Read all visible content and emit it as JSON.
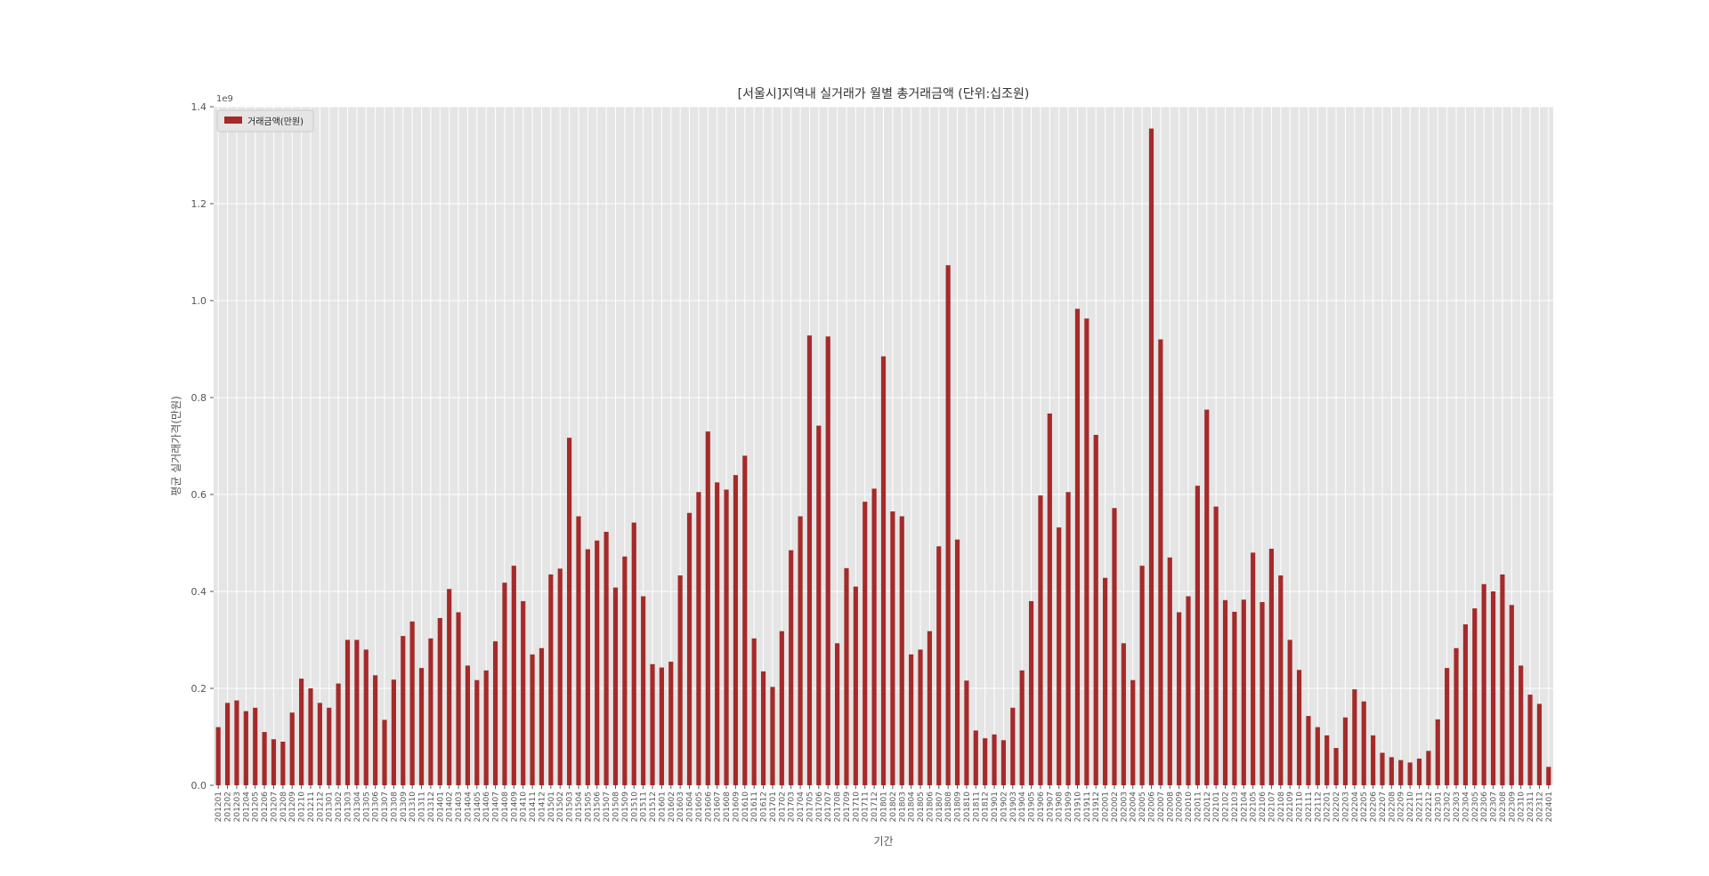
{
  "chart_data": {
    "type": "bar",
    "title": "[서울시]지역내 실거래가 월별 총거래금액 (단위:십조원)",
    "xlabel": "기간",
    "ylabel": "평균 실거래가격(만원)",
    "offset_label": "1e9",
    "legend_label": "거래금액(만원)",
    "legend_position": "top-left",
    "grid": true,
    "colors": {
      "bar": "#A52A2A",
      "plot_bg": "#E5E5E5",
      "grid": "#FFFFFF",
      "text": "#555555",
      "title": "#333333"
    },
    "ylim": [
      0,
      1.4
    ],
    "yticks": [
      "0.0",
      "0.2",
      "0.4",
      "0.6",
      "0.8",
      "1.0",
      "1.2",
      "1.4"
    ],
    "categories": [
      "201201",
      "201202",
      "201203",
      "201204",
      "201205",
      "201206",
      "201207",
      "201208",
      "201209",
      "201210",
      "201211",
      "201212",
      "201301",
      "201302",
      "201303",
      "201304",
      "201305",
      "201306",
      "201307",
      "201308",
      "201309",
      "201310",
      "201311",
      "201312",
      "201401",
      "201402",
      "201403",
      "201404",
      "201405",
      "201406",
      "201407",
      "201408",
      "201409",
      "201410",
      "201411",
      "201412",
      "201501",
      "201502",
      "201503",
      "201504",
      "201505",
      "201506",
      "201507",
      "201508",
      "201509",
      "201510",
      "201511",
      "201512",
      "201601",
      "201602",
      "201603",
      "201604",
      "201605",
      "201606",
      "201607",
      "201608",
      "201609",
      "201610",
      "201611",
      "201612",
      "201701",
      "201702",
      "201703",
      "201704",
      "201705",
      "201706",
      "201707",
      "201708",
      "201709",
      "201710",
      "201711",
      "201712",
      "201801",
      "201802",
      "201803",
      "201804",
      "201805",
      "201806",
      "201807",
      "201808",
      "201809",
      "201810",
      "201811",
      "201812",
      "201901",
      "201902",
      "201903",
      "201904",
      "201905",
      "201906",
      "201907",
      "201908",
      "201909",
      "201910",
      "201911",
      "201912",
      "202001",
      "202002",
      "202003",
      "202004",
      "202005",
      "202006",
      "202007",
      "202008",
      "202009",
      "202010",
      "202011",
      "202012",
      "202101",
      "202102",
      "202103",
      "202104",
      "202105",
      "202106",
      "202107",
      "202108",
      "202109",
      "202110",
      "202111",
      "202112",
      "202201",
      "202202",
      "202203",
      "202204",
      "202205",
      "202206",
      "202207",
      "202208",
      "202209",
      "202210",
      "202211",
      "202212",
      "202301",
      "202302",
      "202303",
      "202304",
      "202305",
      "202306",
      "202307",
      "202308",
      "202309",
      "202310",
      "202311",
      "202312",
      "202401"
    ],
    "values": [
      0.12,
      0.17,
      0.175,
      0.153,
      0.16,
      0.11,
      0.095,
      0.09,
      0.15,
      0.22,
      0.2,
      0.17,
      0.16,
      0.21,
      0.3,
      0.3,
      0.28,
      0.227,
      0.135,
      0.218,
      0.308,
      0.338,
      0.242,
      0.303,
      0.345,
      0.405,
      0.357,
      0.247,
      0.217,
      0.237,
      0.297,
      0.418,
      0.453,
      0.38,
      0.27,
      0.283,
      0.435,
      0.447,
      0.717,
      0.555,
      0.487,
      0.505,
      0.523,
      0.408,
      0.472,
      0.542,
      0.39,
      0.25,
      0.243,
      0.255,
      0.433,
      0.562,
      0.605,
      0.73,
      0.625,
      0.61,
      0.64,
      0.68,
      0.303,
      0.235,
      0.203,
      0.318,
      0.485,
      0.555,
      0.928,
      0.742,
      0.926,
      0.293,
      0.448,
      0.41,
      0.585,
      0.612,
      0.885,
      0.565,
      0.555,
      0.27,
      0.28,
      0.318,
      0.493,
      1.073,
      0.507,
      0.216,
      0.113,
      0.097,
      0.105,
      0.093,
      0.16,
      0.237,
      0.38,
      0.598,
      0.767,
      0.532,
      0.605,
      0.983,
      0.963,
      0.723,
      0.428,
      0.572,
      0.293,
      0.217,
      0.453,
      1.355,
      0.92,
      0.47,
      0.357,
      0.39,
      0.618,
      0.775,
      0.575,
      0.382,
      0.358,
      0.383,
      0.48,
      0.378,
      0.488,
      0.433,
      0.3,
      0.238,
      0.143,
      0.12,
      0.103,
      0.077,
      0.14,
      0.198,
      0.173,
      0.103,
      0.067,
      0.058,
      0.052,
      0.047,
      0.055,
      0.071,
      0.136,
      0.242,
      0.283,
      0.332,
      0.365,
      0.415,
      0.4,
      0.435,
      0.372,
      0.247,
      0.187,
      0.168,
      0.038
    ]
  }
}
